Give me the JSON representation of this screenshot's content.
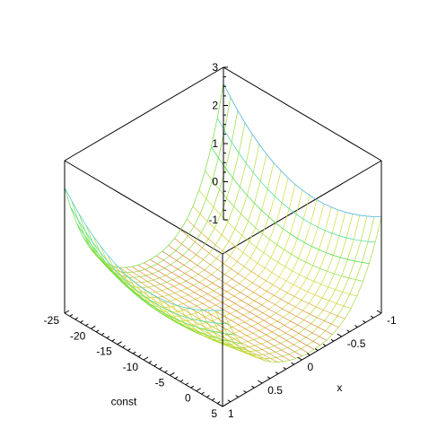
{
  "chart_data": {
    "type": "surface",
    "title": "",
    "xlabel": "x",
    "ylabel": "const",
    "zlabel": "",
    "xlim": [
      -1,
      1
    ],
    "ylim": [
      -25,
      5
    ],
    "zlim": [
      -1,
      3
    ],
    "x_ticks": [
      "-1",
      "-0.5",
      "0",
      "0.5",
      "1"
    ],
    "y_ticks": [
      "-25",
      "-20",
      "-15",
      "-10",
      "-5",
      "0",
      "5"
    ],
    "z_ticks": [
      "-1",
      "0",
      "1",
      "2",
      "3"
    ],
    "color_scheme": "hue-rainbow",
    "grid": false
  }
}
